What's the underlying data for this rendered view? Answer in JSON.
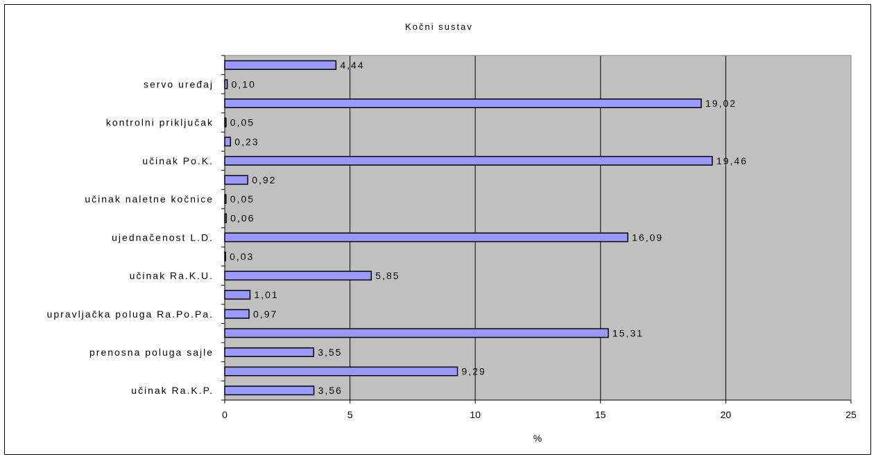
{
  "chart_data": {
    "type": "bar",
    "orientation": "horizontal",
    "title": "Kočni sustav",
    "xlabel": "%",
    "ylabel": "",
    "xlim": [
      0,
      25
    ],
    "x_ticks": [
      0,
      5,
      10,
      15,
      20,
      25
    ],
    "grid": true,
    "legend": "none",
    "colors": {
      "bar": "#9999ff",
      "plot_bg": "#c0c0c0",
      "grid": "#000000"
    },
    "categories": [
      "",
      "servo uređaj",
      "",
      "kontrolni priključak",
      "",
      "učinak Po.K.",
      "",
      "učinak naletne kočnice",
      "",
      "ujednačenost L.D.",
      "",
      "učinak Ra.K.U.",
      "",
      "upravljačka poluga Ra.Po.Pa.",
      "",
      "prenosna poluga sajle",
      "",
      "učinak Ra.K.P."
    ],
    "values": [
      4.44,
      0.1,
      19.02,
      0.05,
      0.23,
      19.46,
      0.92,
      0.05,
      0.06,
      16.09,
      0.03,
      5.85,
      1.01,
      0.97,
      15.31,
      3.55,
      9.29,
      3.56
    ],
    "value_labels": [
      "4,44",
      "0,10",
      "19,02",
      "0,05",
      "0,23",
      "19,46",
      "0,92",
      "0,05",
      "0,06",
      "16,09",
      "0,03",
      "5,85",
      "1,01",
      "0,97",
      "15,31",
      "3,55",
      "9,29",
      "3,56"
    ]
  }
}
